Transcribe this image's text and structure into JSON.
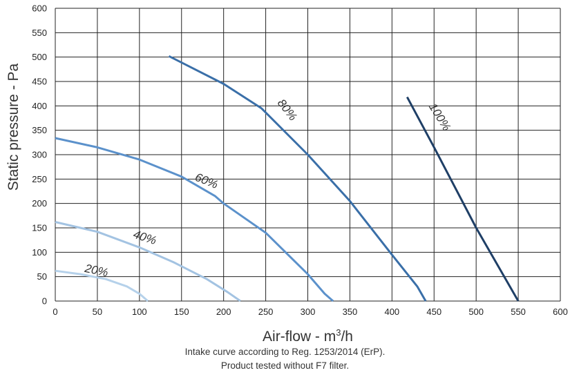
{
  "chart_data": {
    "type": "line",
    "xlabel_main": "Air-flow - m",
    "xlabel_sup": "3",
    "xlabel_tail": "/h",
    "ylabel": "Static pressure - Pa",
    "xlim": [
      0,
      600
    ],
    "ylim": [
      0,
      600
    ],
    "xticks": [
      0,
      50,
      100,
      150,
      200,
      250,
      300,
      350,
      400,
      450,
      500,
      550,
      600
    ],
    "yticks": [
      0,
      50,
      100,
      150,
      200,
      250,
      300,
      350,
      400,
      450,
      500,
      550,
      600
    ],
    "grid": true,
    "series": [
      {
        "name": "20%",
        "color": "#b5d1ea",
        "points": [
          [
            0,
            62
          ],
          [
            30,
            55
          ],
          [
            60,
            45
          ],
          [
            85,
            30
          ],
          [
            100,
            15
          ],
          [
            110,
            0
          ]
        ]
      },
      {
        "name": "40%",
        "color": "#a3c3e2",
        "points": [
          [
            0,
            162
          ],
          [
            50,
            142
          ],
          [
            100,
            110
          ],
          [
            140,
            80
          ],
          [
            180,
            45
          ],
          [
            205,
            18
          ],
          [
            220,
            0
          ]
        ]
      },
      {
        "name": "60%",
        "color": "#5b91cb",
        "points": [
          [
            0,
            334
          ],
          [
            50,
            315
          ],
          [
            100,
            290
          ],
          [
            150,
            255
          ],
          [
            190,
            215
          ],
          [
            200,
            200
          ],
          [
            250,
            140
          ],
          [
            300,
            55
          ],
          [
            320,
            15
          ],
          [
            330,
            0
          ]
        ]
      },
      {
        "name": "80%",
        "color": "#3a6fa8",
        "points": [
          [
            135,
            502
          ],
          [
            200,
            445
          ],
          [
            245,
            395
          ],
          [
            300,
            300
          ],
          [
            350,
            205
          ],
          [
            400,
            95
          ],
          [
            430,
            30
          ],
          [
            440,
            0
          ]
        ]
      },
      {
        "name": "100%",
        "color": "#1f3f66",
        "points": [
          [
            418,
            418
          ],
          [
            450,
            315
          ],
          [
            500,
            150
          ],
          [
            550,
            0
          ]
        ]
      }
    ],
    "curve_labels": [
      {
        "text": "20%",
        "x": 48,
        "y": 55,
        "angle": 12
      },
      {
        "text": "40%",
        "x": 105,
        "y": 123,
        "angle": 18
      },
      {
        "text": "60%",
        "x": 178,
        "y": 239,
        "angle": 22
      },
      {
        "text": "80%",
        "x": 272,
        "y": 387,
        "angle": 52
      },
      {
        "text": "100%",
        "x": 453,
        "y": 373,
        "angle": 58
      }
    ]
  },
  "caption": {
    "line1": "Intake curve according to Reg. 1253/2014 (ErP).",
    "line2": "Product tested without F7 filter."
  }
}
